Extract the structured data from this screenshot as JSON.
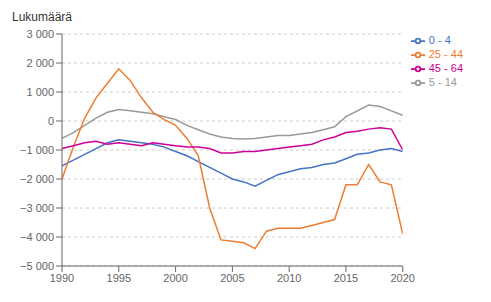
{
  "chart_data": {
    "type": "line",
    "ylabel": "Lukumäärä",
    "x": [
      1990,
      1991,
      1992,
      1993,
      1994,
      1995,
      1996,
      1997,
      1998,
      1999,
      2000,
      2001,
      2002,
      2003,
      2004,
      2005,
      2006,
      2007,
      2008,
      2009,
      2010,
      2011,
      2012,
      2013,
      2014,
      2015,
      2016,
      2017,
      2018,
      2019,
      2020
    ],
    "series": [
      {
        "name": "0 - 4",
        "color": "#4472C4",
        "values": [
          -1550,
          -1350,
          -1150,
          -950,
          -750,
          -650,
          -700,
          -750,
          -800,
          -900,
          -1050,
          -1200,
          -1400,
          -1600,
          -1800,
          -2000,
          -2100,
          -2250,
          -2050,
          -1850,
          -1750,
          -1650,
          -1600,
          -1500,
          -1450,
          -1300,
          -1150,
          -1100,
          -1000,
          -950,
          -1050
        ]
      },
      {
        "name": "5 - 14",
        "color": "#999999",
        "values": [
          -600,
          -400,
          -150,
          100,
          300,
          400,
          350,
          300,
          250,
          150,
          50,
          -150,
          -300,
          -450,
          -550,
          -600,
          -620,
          -600,
          -550,
          -500,
          -500,
          -450,
          -400,
          -300,
          -200,
          150,
          350,
          550,
          500,
          350,
          200
        ]
      },
      {
        "name": "25 - 44",
        "color": "#ED7D31",
        "values": [
          -2000,
          -900,
          100,
          800,
          1300,
          1800,
          1400,
          800,
          300,
          50,
          -150,
          -600,
          -1200,
          -3000,
          -4100,
          -4150,
          -4200,
          -4400,
          -3800,
          -3700,
          -3700,
          -3700,
          -3600,
          -3500,
          -3400,
          -2200,
          -2200,
          -1500,
          -2100,
          -2200,
          -3900
        ]
      },
      {
        "name": "45 - 64",
        "color": "#CC0099",
        "values": [
          -950,
          -850,
          -750,
          -700,
          -800,
          -750,
          -800,
          -850,
          -750,
          -800,
          -850,
          -900,
          -900,
          -950,
          -1100,
          -1100,
          -1050,
          -1050,
          -1000,
          -950,
          -900,
          -850,
          -800,
          -650,
          -550,
          -400,
          -350,
          -280,
          -230,
          -280,
          -1000
        ]
      }
    ],
    "xlim": [
      1990,
      2020
    ],
    "xticks": [
      1990,
      1995,
      2000,
      2005,
      2010,
      2015,
      2020
    ],
    "ylim": [
      -5000,
      3000
    ],
    "yticks": [
      {
        "value": -5000,
        "label": "−5 000"
      },
      {
        "value": -4000,
        "label": "−4 000"
      },
      {
        "value": -3000,
        "label": "−3 000"
      },
      {
        "value": -2000,
        "label": "−2 000"
      },
      {
        "value": -1000,
        "label": "−1 000"
      },
      0,
      {
        "value": 1000,
        "label": "1 000"
      },
      {
        "value": 2000,
        "label": "2 000"
      },
      {
        "value": 3000,
        "label": "3 000"
      }
    ],
    "grid": true,
    "legend": "upper right"
  }
}
